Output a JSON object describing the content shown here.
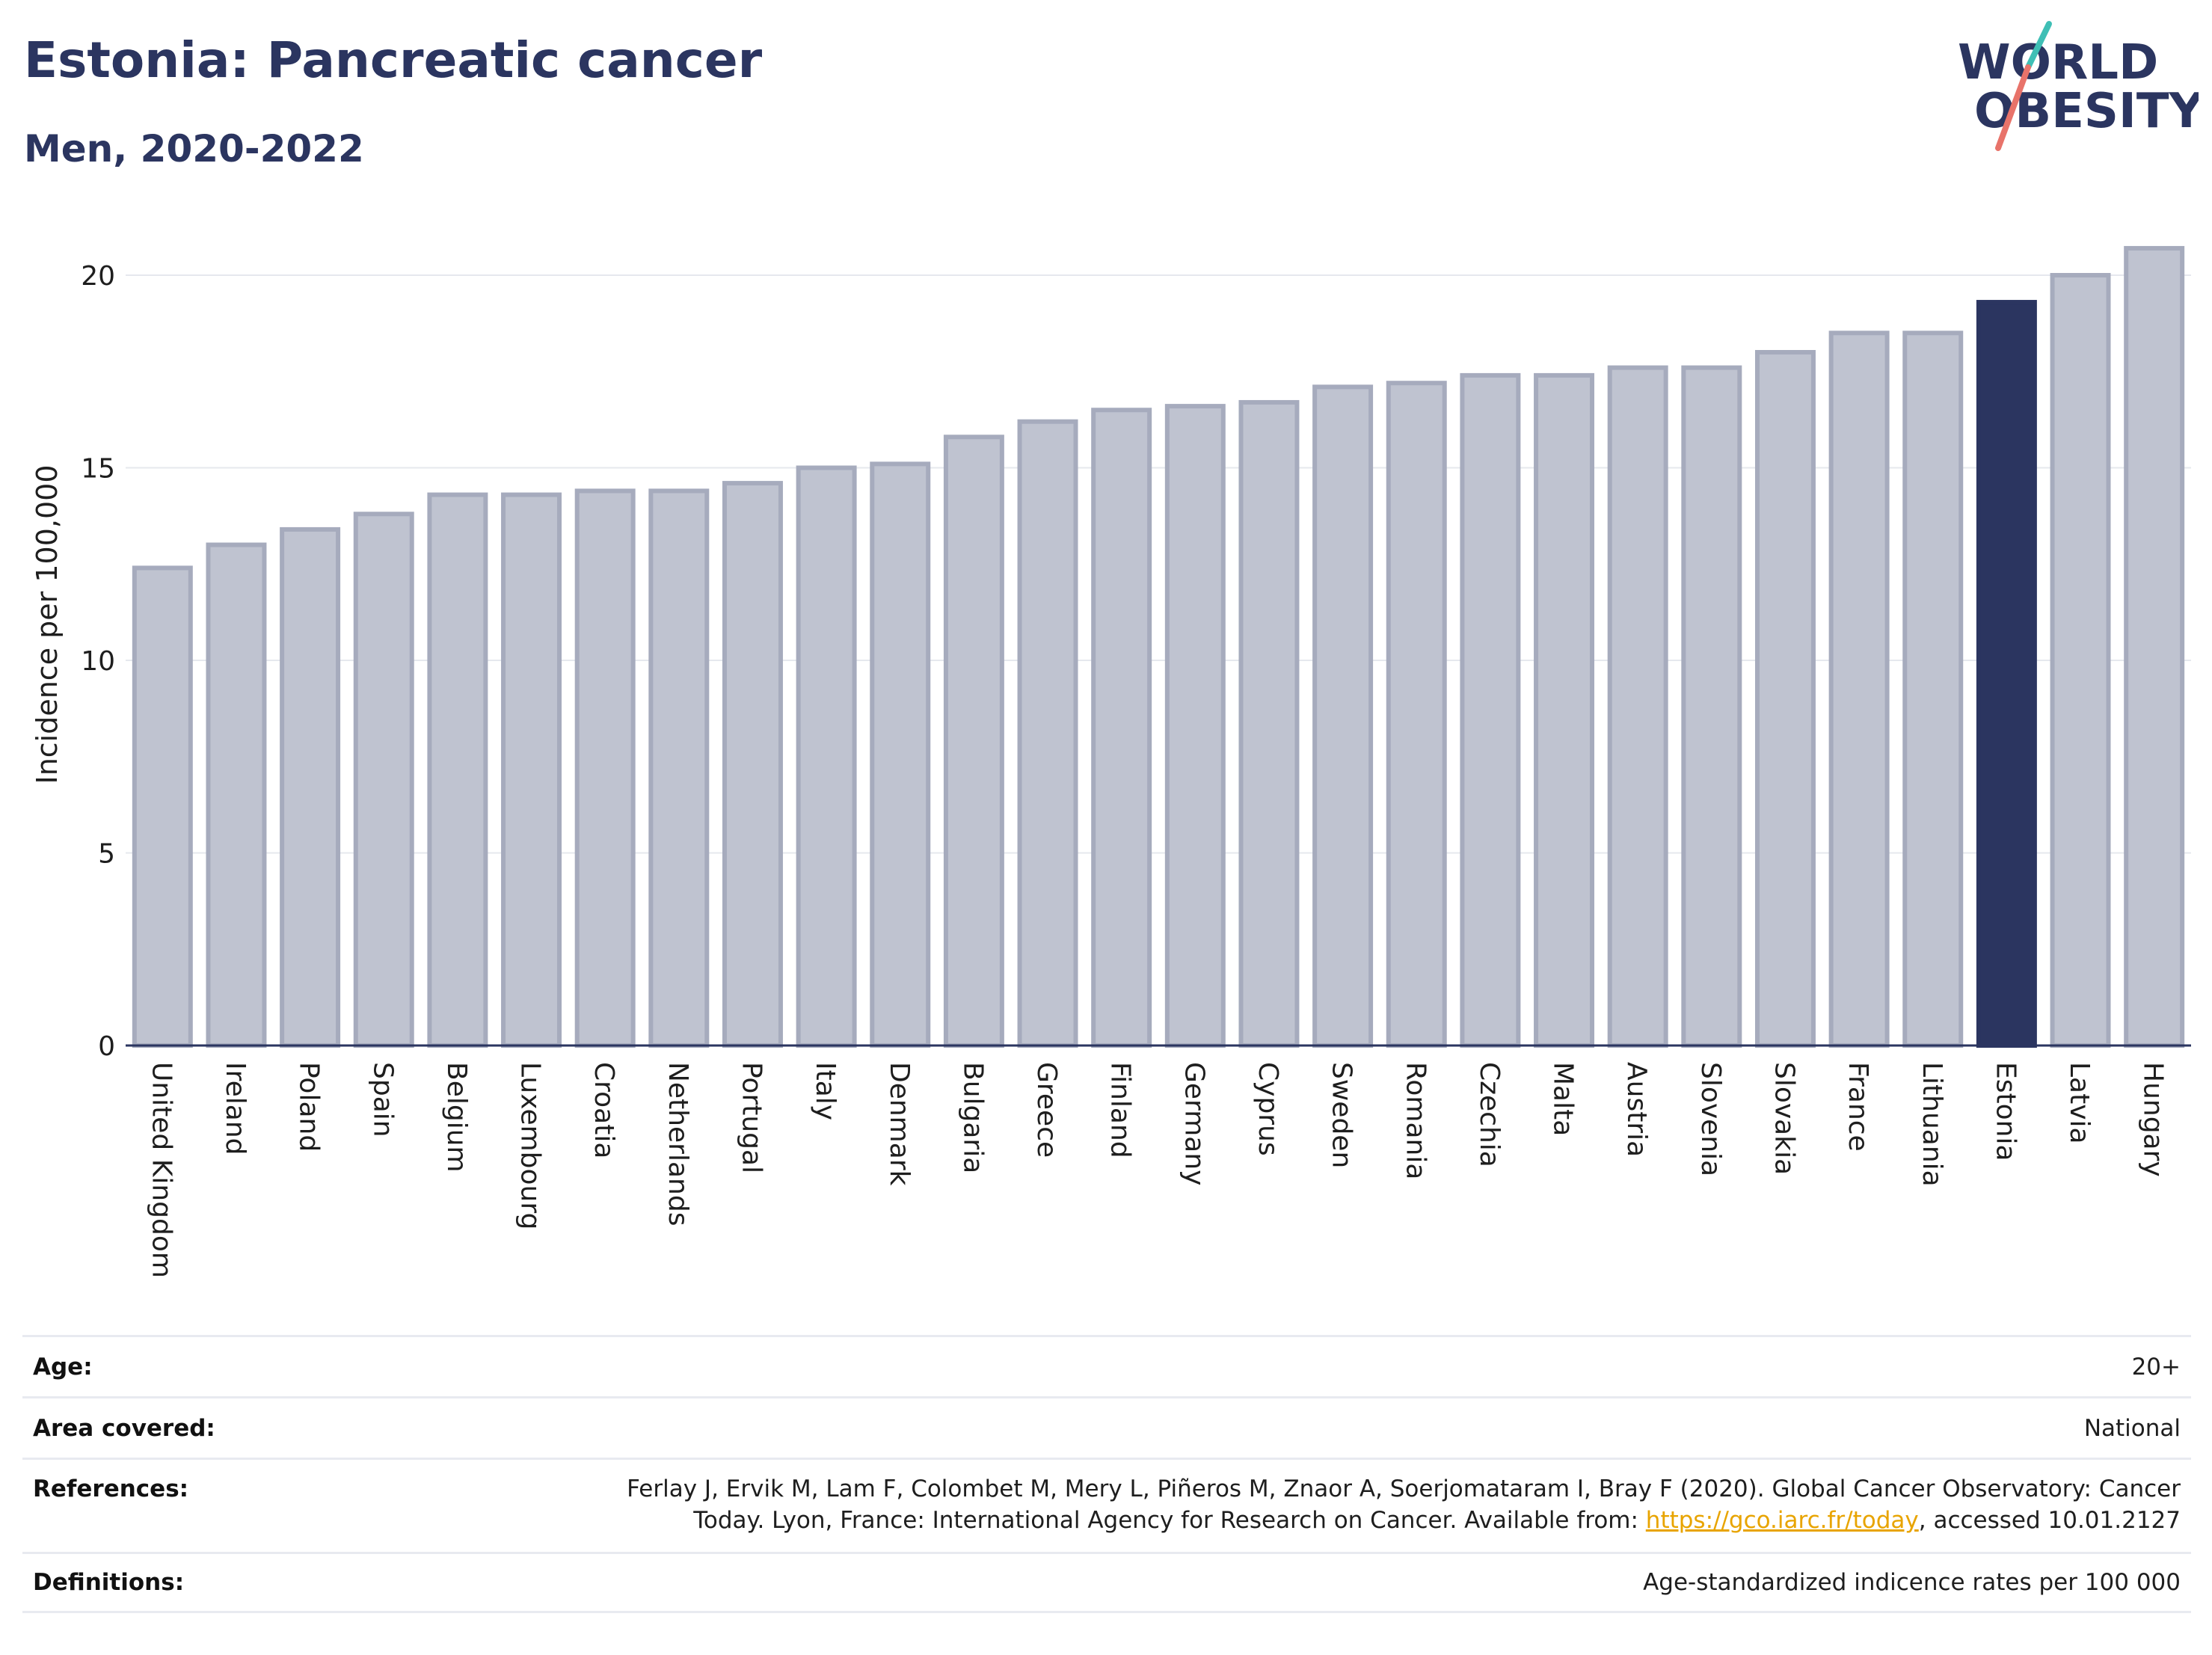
{
  "header": {
    "title": "Estonia: Pancreatic cancer",
    "subtitle": "Men, 2020-2022",
    "logo_text_line1": "WORLD",
    "logo_text_line2": "OBESITY"
  },
  "colors": {
    "bar_default": "#bfc3d0",
    "bar_default_border": "#a6abbd",
    "bar_highlight": "#2b3560",
    "title": "#2b3560",
    "logo_teal": "#3fbfb5",
    "logo_coral": "#e8736a",
    "link": "#e8a400"
  },
  "chart_data": {
    "type": "bar",
    "ylabel": "Incidence per 100,000",
    "xlabel": "",
    "ylim": [
      0,
      21
    ],
    "yticks": [
      0,
      5,
      10,
      15,
      20
    ],
    "grid": true,
    "highlight": "Estonia",
    "categories": [
      "United Kingdom",
      "Ireland",
      "Poland",
      "Spain",
      "Belgium",
      "Luxembourg",
      "Croatia",
      "Netherlands",
      "Portugal",
      "Italy",
      "Denmark",
      "Bulgaria",
      "Greece",
      "Finland",
      "Germany",
      "Cyprus",
      "Sweden",
      "Romania",
      "Czechia",
      "Malta",
      "Austria",
      "Slovenia",
      "Slovakia",
      "France",
      "Lithuania",
      "Estonia",
      "Latvia",
      "Hungary"
    ],
    "values": [
      12.4,
      13.0,
      13.4,
      13.8,
      14.3,
      14.3,
      14.4,
      14.4,
      14.6,
      15.0,
      15.1,
      15.8,
      16.2,
      16.5,
      16.6,
      16.7,
      17.1,
      17.2,
      17.4,
      17.4,
      17.6,
      17.6,
      18.0,
      18.5,
      18.5,
      19.3,
      20.0,
      20.7
    ]
  },
  "footer": {
    "age_label": "Age:",
    "age_value": "20+",
    "area_label": "Area covered:",
    "area_value": "National",
    "references_label": "References:",
    "references_line1": "Ferlay J, Ervik M, Lam F, Colombet M, Mery L, Piñeros M, Znaor A, Soerjomataram I, Bray F (2020). Global Cancer Observatory: Cancer",
    "references_line2_pre": "Today. Lyon, France: International Agency for Research on Cancer. Available from: ",
    "references_link": "https://gco.iarc.fr/today",
    "references_line2_post": ", accessed 10.01.2127",
    "definitions_label": "Definitions:",
    "definitions_value": "Age-standardized indicence rates per 100 000"
  }
}
